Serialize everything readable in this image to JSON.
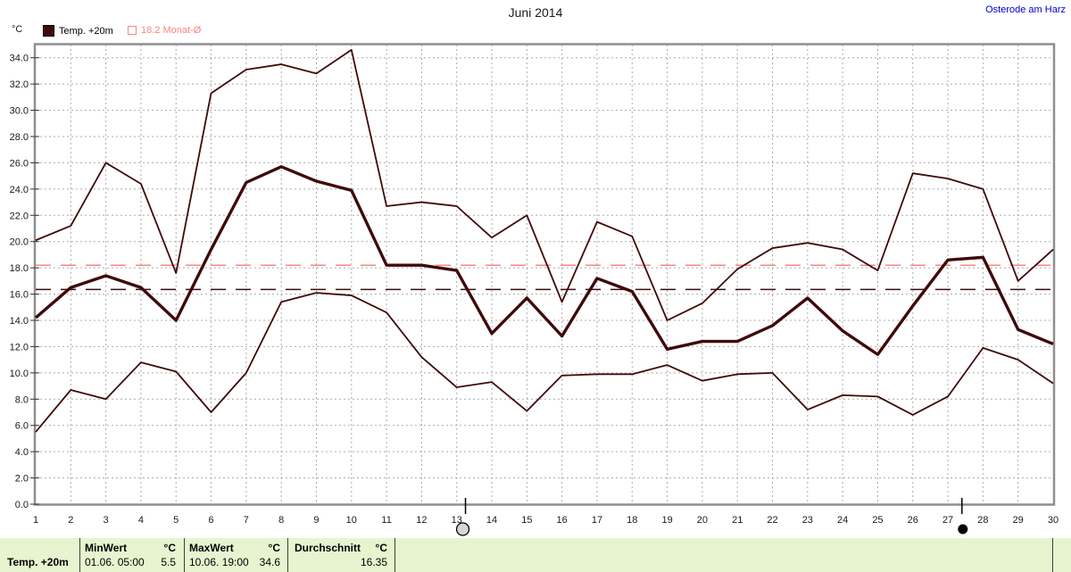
{
  "header": {
    "title": "Juni 2014",
    "location": "Osterode am Harz"
  },
  "legend": {
    "unit": "°C",
    "series_label": "Temp. +20m",
    "monthly_avg_label": "18.2 Monat-Ø"
  },
  "chart_data": {
    "type": "line",
    "title": "Juni 2014",
    "ylabel": "°C",
    "xlim": [
      1,
      30
    ],
    "ylim": [
      0,
      35
    ],
    "grid": true,
    "x": [
      1,
      2,
      3,
      4,
      5,
      6,
      7,
      8,
      9,
      10,
      11,
      12,
      13,
      14,
      15,
      16,
      17,
      18,
      19,
      20,
      21,
      22,
      23,
      24,
      25,
      26,
      27,
      28,
      29,
      30
    ],
    "xticks": [
      1,
      2,
      3,
      4,
      5,
      6,
      7,
      8,
      9,
      10,
      11,
      12,
      13,
      14,
      15,
      16,
      17,
      18,
      19,
      20,
      21,
      22,
      23,
      24,
      25,
      26,
      27,
      28,
      29,
      30
    ],
    "yticks": [
      0,
      2,
      4,
      6,
      8,
      10,
      12,
      14,
      16,
      18,
      20,
      22,
      24,
      26,
      28,
      30,
      32,
      34
    ],
    "series": [
      {
        "name": "daily-max",
        "values": [
          20.1,
          21.2,
          26.0,
          24.4,
          17.6,
          31.3,
          33.1,
          33.5,
          32.8,
          34.6,
          22.7,
          23.0,
          22.7,
          20.3,
          22.0,
          15.4,
          21.5,
          20.4,
          14.0,
          15.3,
          17.9,
          19.5,
          19.9,
          19.4,
          17.8,
          25.2,
          24.8,
          24.0,
          17.0,
          19.4
        ],
        "thickness": "thin"
      },
      {
        "name": "Temp. +20m",
        "values": [
          14.2,
          16.5,
          17.4,
          16.5,
          14.0,
          19.4,
          24.5,
          25.7,
          24.6,
          23.9,
          18.2,
          18.2,
          17.8,
          13.0,
          15.7,
          12.8,
          17.2,
          16.2,
          11.8,
          12.4,
          12.4,
          13.6,
          15.7,
          13.2,
          11.4,
          15.1,
          18.6,
          18.8,
          13.3,
          12.2
        ],
        "thickness": "thick"
      },
      {
        "name": "daily-min",
        "values": [
          5.5,
          8.7,
          8.0,
          10.8,
          10.1,
          7.0,
          10.0,
          15.4,
          16.1,
          15.9,
          14.6,
          11.2,
          8.9,
          9.3,
          7.1,
          9.8,
          9.9,
          9.9,
          10.6,
          9.4,
          9.9,
          10.0,
          7.2,
          8.3,
          8.2,
          6.8,
          8.2,
          11.9,
          11.0,
          9.2
        ],
        "thickness": "thin"
      }
    ],
    "reference_lines": [
      {
        "name": "monat-durchschnitt-18-2",
        "label": "18.2 Monat-Ø",
        "value": 18.2,
        "color": "#f8867f"
      },
      {
        "name": "monats-mittel-16-35",
        "label": "16.35",
        "value": 16.35,
        "color": "#3a0d0d"
      }
    ],
    "moon_markers": [
      {
        "day": 13.25,
        "phase": "full-moon"
      },
      {
        "day": 27.4,
        "phase": "new-moon"
      }
    ],
    "line_color": "#400a0a",
    "grid_color": "#ababab",
    "frame_color": "#8f8f8f",
    "legend_position": "top-left"
  },
  "footer": {
    "row_label": "Temp. +20m",
    "min": {
      "header": "MinWert",
      "unit": "°C",
      "datetime": "01.06.  05:00",
      "value": "5.5"
    },
    "max": {
      "header": "MaxWert",
      "unit": "°C",
      "datetime": "10.06.  19:00",
      "value": "34.6"
    },
    "avg": {
      "header": "Durchschnitt",
      "unit": "°C",
      "value": "16.35"
    }
  }
}
